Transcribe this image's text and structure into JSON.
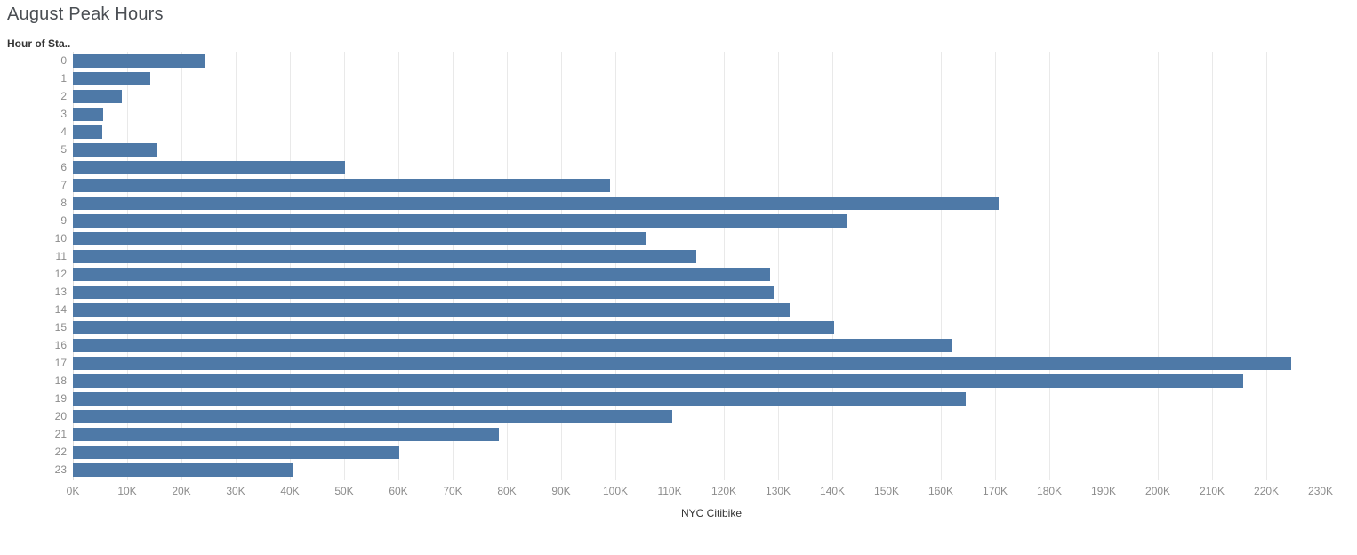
{
  "title": "August Peak Hours",
  "row_field_header": "Hour of Sta..",
  "x_axis_title": "NYC Citibike",
  "colors": {
    "bar": "#4e79a7",
    "gridline": "#e9e9e9",
    "zero_line": "#dcdcdc",
    "title_text": "#4b4f54",
    "tick_text": "#8c8c8c",
    "field_label_text": "#333333",
    "background": "#ffffff"
  },
  "chart_data": {
    "type": "bar",
    "orientation": "horizontal",
    "title": "August Peak Hours",
    "xlabel": "NYC Citibike",
    "ylabel": "Hour of Sta..",
    "legend": "none",
    "grid": "vertical gridlines on",
    "categories": [
      "0",
      "1",
      "2",
      "3",
      "4",
      "5",
      "6",
      "7",
      "8",
      "9",
      "10",
      "11",
      "12",
      "13",
      "14",
      "15",
      "16",
      "17",
      "18",
      "19",
      "20",
      "21",
      "22",
      "23"
    ],
    "values": [
      24300,
      14300,
      9000,
      5600,
      5400,
      15400,
      50200,
      99000,
      170700,
      142600,
      105600,
      114900,
      128500,
      129200,
      132100,
      140300,
      162100,
      224600,
      215700,
      164600,
      110500,
      78500,
      60200,
      40700
    ],
    "xlim": [
      0,
      235400
    ],
    "xtick_labels": [
      "0K",
      "10K",
      "20K",
      "30K",
      "40K",
      "50K",
      "60K",
      "70K",
      "80K",
      "90K",
      "100K",
      "110K",
      "120K",
      "130K",
      "140K",
      "150K",
      "160K",
      "170K",
      "180K",
      "190K",
      "200K",
      "210K",
      "220K",
      "230K"
    ],
    "xtick_values": [
      0,
      10000,
      20000,
      30000,
      40000,
      50000,
      60000,
      70000,
      80000,
      90000,
      100000,
      110000,
      120000,
      130000,
      140000,
      150000,
      160000,
      170000,
      180000,
      190000,
      200000,
      210000,
      220000,
      230000
    ]
  }
}
